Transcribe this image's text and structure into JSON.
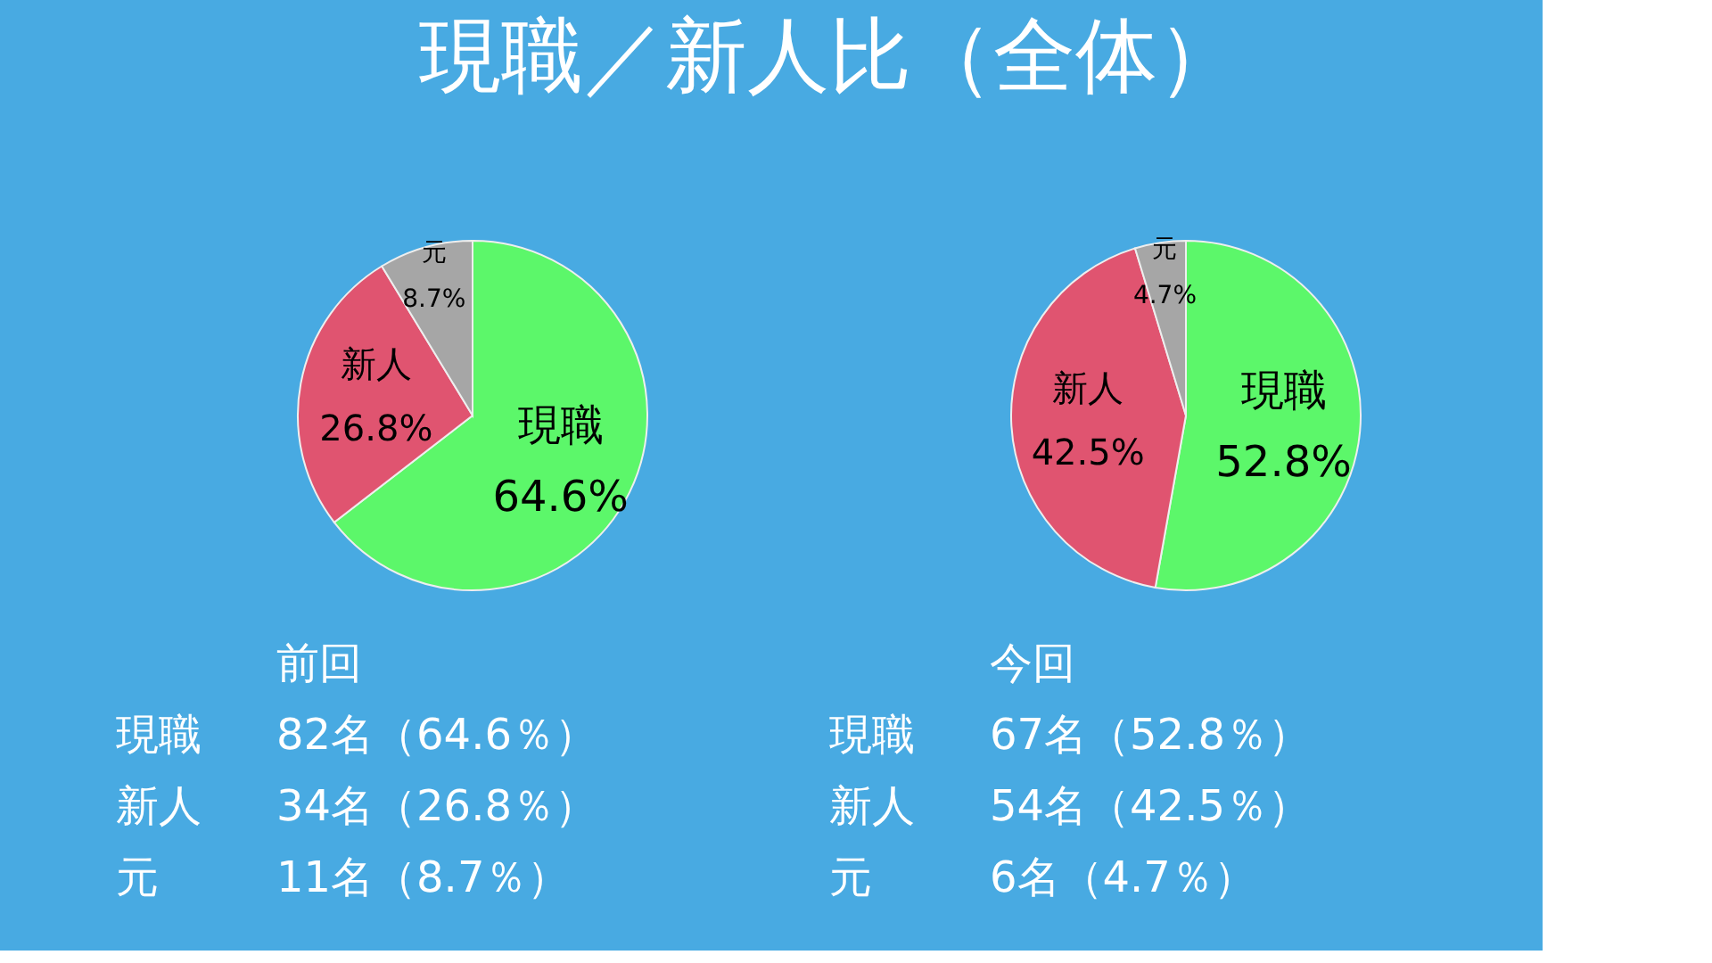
{
  "chart_data": [
    {
      "type": "pie",
      "title": "現職／新人比（全体）",
      "categories": [
        "現職",
        "新人",
        "元"
      ],
      "values": [
        64.6,
        26.8,
        8.7
      ],
      "colors": [
        "#5cf76a",
        "#e05470",
        "#a6a6a6"
      ],
      "value_labels": [
        "64.6%",
        "26.8%",
        "8.7%"
      ],
      "annotations": [
        "前回",
        "現職 82名（64.6％）",
        "新人 34名（26.8％）",
        "元 11名（8.7％）"
      ]
    },
    {
      "type": "pie",
      "categories": [
        "現職",
        "新人",
        "元"
      ],
      "values": [
        52.8,
        42.5,
        4.7
      ],
      "colors": [
        "#5cf76a",
        "#e05470",
        "#a6a6a6"
      ],
      "value_labels": [
        "52.8%",
        "42.5%",
        "4.7%"
      ],
      "annotations": [
        "今回",
        "現職 67名（52.8％）",
        "新人 54名（42.5％）",
        "元 6名（4.7％）"
      ]
    }
  ]
}
